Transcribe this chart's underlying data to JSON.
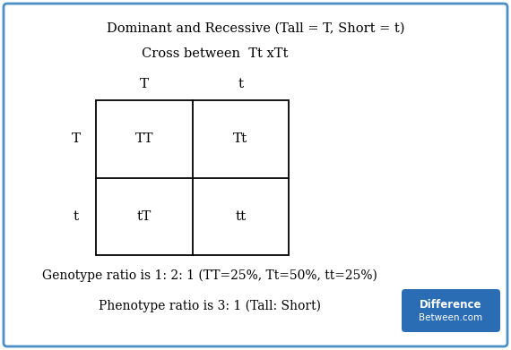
{
  "title1": "Dominant and Recessive (Tall = T, Short = t)",
  "title2": "Cross between  Tt xTt",
  "col_headers": [
    "T",
    "t"
  ],
  "row_headers": [
    "T",
    "t"
  ],
  "cells": [
    [
      "TT",
      "Tt"
    ],
    [
      "tT",
      "tt"
    ]
  ],
  "genotype_text": "Genotype ratio is 1: 2: 1 (TT=25%, Tt=50%, tt=25%)",
  "phenotype_text": "Phenotype ratio is 3: 1 (Tall: Short)",
  "outer_border_color": "#4a90c4",
  "grid_color": "#000000",
  "bg_color": "#ffffff",
  "text_color": "#000000",
  "font_size_title": 10.5,
  "font_size_cell": 11,
  "font_size_header": 11,
  "font_size_bottom": 10,
  "logo_bg": "#2a6db5",
  "logo_text1": "Difference",
  "logo_text2": "Between.com"
}
